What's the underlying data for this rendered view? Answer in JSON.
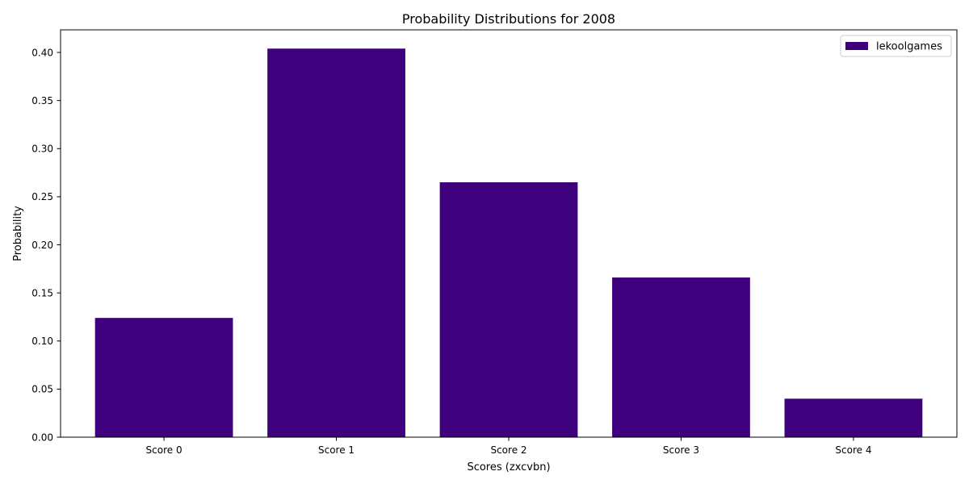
{
  "chart_data": {
    "type": "bar",
    "title": "Probability Distributions for 2008",
    "xlabel": "Scores (zxcvbn)",
    "ylabel": "Probability",
    "categories": [
      "Score 0",
      "Score 1",
      "Score 2",
      "Score 3",
      "Score 4"
    ],
    "series": [
      {
        "name": "lekoolgames",
        "values": [
          0.124,
          0.404,
          0.265,
          0.166,
          0.04
        ],
        "color": "#3f007d"
      }
    ],
    "ylim": [
      0,
      0.4235
    ],
    "yticks": [
      0.0,
      0.05,
      0.1,
      0.15,
      0.2,
      0.25,
      0.3,
      0.35,
      0.4
    ],
    "ytick_labels": [
      "0.00",
      "0.05",
      "0.10",
      "0.15",
      "0.20",
      "0.25",
      "0.30",
      "0.35",
      "0.40"
    ],
    "grid": false,
    "legend_position": "top-right"
  }
}
